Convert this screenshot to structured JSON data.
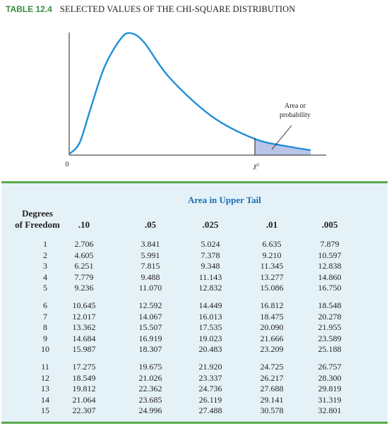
{
  "table_number": "TABLE 12.4",
  "table_title": "SELECTED VALUES OF THE CHI-SQUARE DISTRIBUTION",
  "figure": {
    "origin_label": "0",
    "critical_label": "χ²",
    "area_label_line1": "Area or",
    "area_label_line2": "probability",
    "curve_color": "#1f8fd8",
    "shade_color": "#b9c4e8"
  },
  "table": {
    "header_span": "Area in Upper Tail",
    "df_header_line1": "Degrees",
    "df_header_line2": "of Freedom",
    "columns": [
      ".10",
      ".05",
      ".025",
      ".01",
      ".005"
    ],
    "rows": [
      {
        "df": "1",
        "values": [
          "2.706",
          "3.841",
          "5.024",
          "6.635",
          "7.879"
        ]
      },
      {
        "df": "2",
        "values": [
          "4.605",
          "5.991",
          "7.378",
          "9.210",
          "10.597"
        ]
      },
      {
        "df": "3",
        "values": [
          "6.251",
          "7.815",
          "9.348",
          "11.345",
          "12.838"
        ]
      },
      {
        "df": "4",
        "values": [
          "7.779",
          "9.488",
          "11.143",
          "13.277",
          "14.860"
        ]
      },
      {
        "df": "5",
        "values": [
          "9.236",
          "11.070",
          "12.832",
          "15.086",
          "16.750"
        ]
      },
      {
        "df": "6",
        "values": [
          "10.645",
          "12.592",
          "14.449",
          "16.812",
          "18.548"
        ]
      },
      {
        "df": "7",
        "values": [
          "12.017",
          "14.067",
          "16.013",
          "18.475",
          "20.278"
        ]
      },
      {
        "df": "8",
        "values": [
          "13.362",
          "15.507",
          "17.535",
          "20.090",
          "21.955"
        ]
      },
      {
        "df": "9",
        "values": [
          "14.684",
          "16.919",
          "19.023",
          "21.666",
          "23.589"
        ]
      },
      {
        "df": "10",
        "values": [
          "15.987",
          "18.307",
          "20.483",
          "23.209",
          "25.188"
        ]
      },
      {
        "df": "11",
        "values": [
          "17.275",
          "19.675",
          "21.920",
          "24.725",
          "26.757"
        ]
      },
      {
        "df": "12",
        "values": [
          "18.549",
          "21.026",
          "23.337",
          "26.217",
          "28.300"
        ]
      },
      {
        "df": "13",
        "values": [
          "19.812",
          "22.362",
          "24.736",
          "27.688",
          "29.819"
        ]
      },
      {
        "df": "14",
        "values": [
          "21.064",
          "23.685",
          "26.119",
          "29.141",
          "31.319"
        ]
      },
      {
        "df": "15",
        "values": [
          "22.307",
          "24.996",
          "27.488",
          "30.578",
          "32.801"
        ]
      }
    ]
  }
}
